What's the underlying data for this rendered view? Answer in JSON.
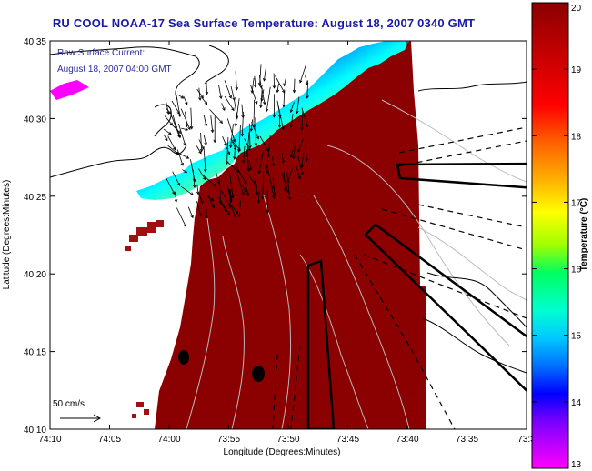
{
  "title": "RU COOL  NOAA-17  Sea Surface Temperature:  August 18, 2007 0340 GMT",
  "legend": {
    "line1": "Raw Surface Current:",
    "line2": "August 18, 2007 04:00 GMT",
    "scale_label": "50 cm/s"
  },
  "axes": {
    "xlabel": "Longitude (Degrees:Minutes)",
    "ylabel": "Latitude (Degrees:Minutes)",
    "xticks": [
      "74:10",
      "74:05",
      "74:00",
      "73:55",
      "73:50",
      "73:45",
      "73:40",
      "73:35",
      "73:3"
    ],
    "yticks": [
      "40:35",
      "40:30",
      "40:25",
      "40:20",
      "40:15",
      "40:10"
    ]
  },
  "colorbar": {
    "label": "Temperature (°C)",
    "ticks": [
      "20",
      "19",
      "18",
      "17",
      "16",
      "15",
      "14",
      "13"
    ],
    "min": 13,
    "max": 20,
    "colors": [
      "#ff00ff",
      "#7a00ff",
      "#0000ff",
      "#0070ff",
      "#00c8ff",
      "#00ffd0",
      "#00ff60",
      "#a0ff00",
      "#ffff00",
      "#ffb000",
      "#ff5000",
      "#ff0000",
      "#c00000",
      "#8b0000"
    ]
  },
  "colors": {
    "ocean_warm": "#8b0000",
    "title": "#1a1aa6",
    "legend_text": "#2a2aa0"
  }
}
